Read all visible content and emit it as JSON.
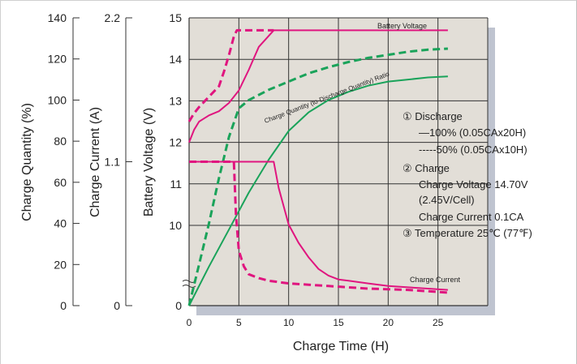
{
  "chart_data": {
    "type": "line",
    "title": "",
    "xlabel": "Charge Time (H)",
    "x_ticks": [
      "0",
      "5",
      "10",
      "15",
      "20",
      "25"
    ],
    "xlim": [
      0,
      30
    ],
    "axes": {
      "charge_quantity": {
        "label": "Charge Quantity (%)",
        "ticks": [
          "0",
          "20",
          "40",
          "60",
          "80",
          "100",
          "120",
          "140"
        ],
        "range": [
          0,
          140
        ]
      },
      "charge_current": {
        "label": "Charge Current (A)",
        "ticks": [
          "0",
          "1.1",
          "2.2"
        ],
        "range": [
          0,
          2.2
        ]
      },
      "battery_voltage": {
        "label": "Battery Voltage (V)",
        "ticks": [
          "0",
          "10",
          "11",
          "12",
          "13",
          "14",
          "15"
        ],
        "range": [
          9,
          15
        ],
        "broken_axis": true
      }
    },
    "grid": true,
    "legend_text": {
      "discharge_title": "① Discharge",
      "discharge_100": "—100% (0.05CAx20H)",
      "discharge_50": "-----50% (0.05CAx10H)",
      "charge_title": "② Charge",
      "charge_voltage": "Charge Voltage 14.70V",
      "charge_cell": "(2.45V/Cell)",
      "charge_current_label": "Charge Current 0.1CA",
      "temperature": "③ Temperature 25℃ (77℉)"
    },
    "annotations": {
      "battery_voltage": "Battery Voltage",
      "charge_ratio": "Charge Quantity (to-Discharge Quantity) Ratio",
      "charge_current": "Charge Current"
    },
    "colors": {
      "voltage_current": "#e0157f",
      "quantity": "#1aa35a",
      "plot_bg": "#e2ded7",
      "shadow": "#bfc4d0",
      "grid": "#333333"
    },
    "series": [
      {
        "quantity": "battery_voltage",
        "discharge": "100%",
        "style": "solid",
        "axis": "battery_voltage",
        "x": [
          0,
          0.5,
          1,
          2,
          3,
          4,
          5,
          6,
          7,
          8.5,
          26
        ],
        "y": [
          12.0,
          12.3,
          12.5,
          12.65,
          12.75,
          12.95,
          13.25,
          13.75,
          14.3,
          14.7,
          14.7
        ]
      },
      {
        "quantity": "battery_voltage",
        "discharge": "50%",
        "style": "dashed",
        "axis": "battery_voltage",
        "x": [
          0,
          0.5,
          1,
          2,
          3,
          3.5,
          4,
          4.5,
          4.8,
          5,
          8.5
        ],
        "y": [
          12.5,
          12.7,
          12.85,
          13.1,
          13.35,
          13.7,
          14.1,
          14.55,
          14.7,
          14.7,
          14.7
        ]
      },
      {
        "quantity": "charge_quantity",
        "discharge": "100%",
        "style": "solid",
        "axis": "charge_quantity",
        "x": [
          0,
          2,
          4,
          6,
          8,
          10,
          12,
          14,
          16,
          18,
          20,
          22,
          24,
          26
        ],
        "y": [
          0,
          19,
          37,
          55,
          71,
          85,
          94,
          100,
          104,
          107,
          109,
          110,
          111,
          111.5
        ]
      },
      {
        "quantity": "charge_quantity",
        "discharge": "50%",
        "style": "dashed",
        "axis": "charge_quantity",
        "x": [
          0,
          1,
          2,
          3,
          4,
          5,
          6,
          8,
          10,
          12,
          14,
          16,
          18,
          20,
          22,
          24,
          26
        ],
        "y": [
          0,
          20,
          40,
          62,
          82,
          96,
          100,
          105,
          109,
          113,
          116,
          118.5,
          120.5,
          122,
          123.5,
          124.5,
          125
        ]
      },
      {
        "quantity": "charge_current",
        "discharge": "100%",
        "style": "solid",
        "axis": "charge_current",
        "x": [
          0,
          8.5,
          9,
          10,
          11,
          12,
          13,
          14,
          15,
          16,
          18,
          20,
          22,
          24,
          26
        ],
        "y": [
          1.1,
          1.1,
          0.9,
          0.62,
          0.48,
          0.37,
          0.28,
          0.23,
          0.2,
          0.19,
          0.17,
          0.15,
          0.14,
          0.13,
          0.12
        ]
      },
      {
        "quantity": "charge_current",
        "discharge": "50%",
        "style": "dashed",
        "axis": "charge_current",
        "x": [
          0,
          4.5,
          4.7,
          5,
          5.5,
          6,
          7,
          8,
          10,
          14,
          18,
          22,
          26
        ],
        "y": [
          1.1,
          1.1,
          0.7,
          0.42,
          0.3,
          0.24,
          0.21,
          0.19,
          0.17,
          0.15,
          0.13,
          0.12,
          0.1
        ]
      }
    ]
  }
}
